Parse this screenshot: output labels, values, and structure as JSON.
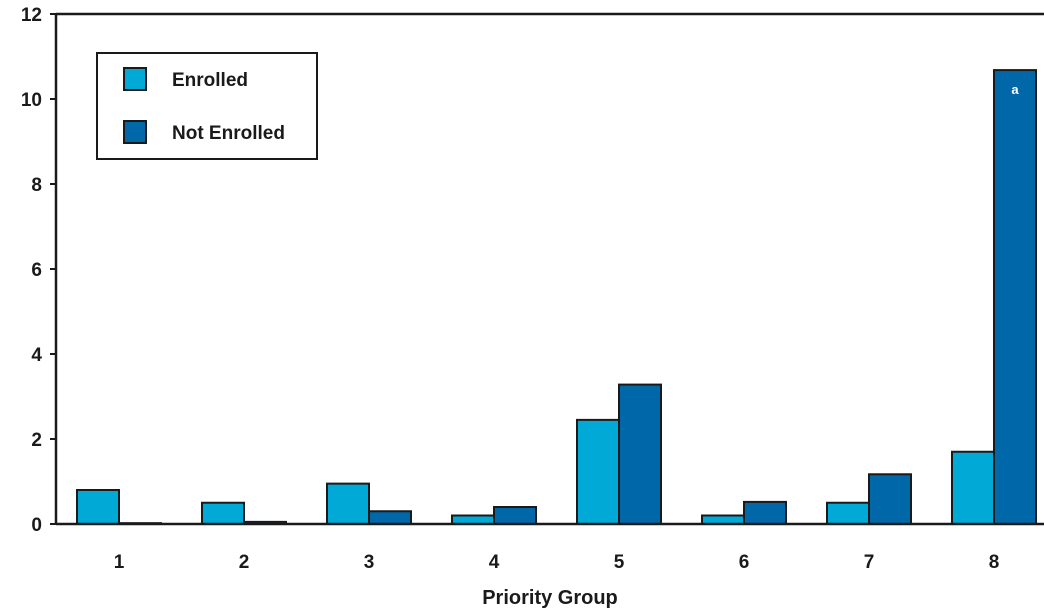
{
  "chart_data": {
    "type": "bar",
    "title": "",
    "xlabel": "Priority Group",
    "ylabel": "",
    "categories": [
      "1",
      "2",
      "3",
      "4",
      "5",
      "6",
      "7",
      "8"
    ],
    "series": [
      {
        "name": "Enrolled",
        "color": "#00a9d6",
        "values": [
          0.8,
          0.5,
          0.95,
          0.2,
          2.45,
          0.2,
          0.5,
          1.7
        ]
      },
      {
        "name": "Not Enrolled",
        "color": "#0068a9",
        "values": [
          0.02,
          0.05,
          0.3,
          0.4,
          3.28,
          0.52,
          1.17,
          10.68
        ]
      }
    ],
    "ylim": [
      0,
      12
    ],
    "yticks": [
      "0",
      "2",
      "4",
      "6",
      "8",
      "10",
      "12"
    ],
    "grid": false,
    "legend": "top-left",
    "annotation": {
      "text": "a",
      "series": "Not Enrolled",
      "category": "8"
    }
  }
}
